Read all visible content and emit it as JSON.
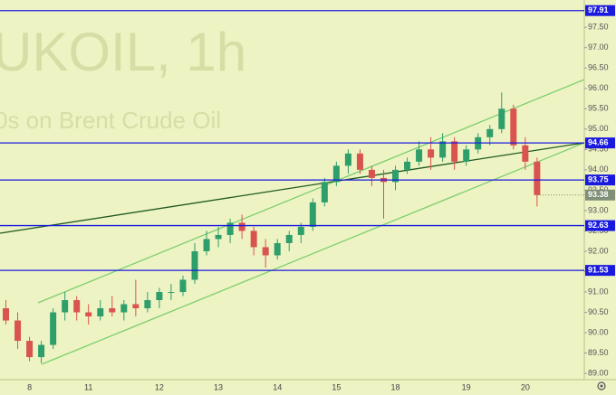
{
  "chart_data": {
    "type": "candlestick",
    "title": "UKOIL, 1h",
    "subtitle": "0s on Brent Crude Oil",
    "categories": [
      null,
      null,
      "8",
      null,
      null,
      null,
      null,
      "11",
      null,
      null,
      null,
      null,
      null,
      "12",
      null,
      null,
      null,
      null,
      "13",
      null,
      null,
      null,
      null,
      "14",
      null,
      null,
      null,
      null,
      "15",
      null,
      null,
      null,
      null,
      "18",
      null,
      null,
      null,
      null,
      null,
      "19",
      null,
      null,
      null,
      null,
      "20",
      null
    ],
    "series": {
      "open": [
        90.6,
        90.3,
        89.8,
        89.4,
        89.7,
        90.5,
        90.8,
        90.5,
        90.4,
        90.6,
        90.5,
        90.7,
        90.6,
        90.8,
        91.0,
        91.0,
        91.3,
        92.0,
        92.3,
        92.4,
        92.7,
        92.5,
        92.1,
        91.9,
        92.2,
        92.4,
        92.6,
        93.2,
        93.7,
        94.1,
        94.4,
        94.0,
        93.8,
        93.7,
        94.0,
        94.2,
        94.5,
        94.3,
        94.7,
        94.2,
        94.5,
        94.8,
        95.0,
        95.5,
        94.6,
        94.2
      ],
      "high": [
        90.8,
        90.5,
        89.9,
        89.8,
        90.6,
        91.0,
        90.9,
        90.7,
        90.8,
        90.9,
        90.8,
        91.3,
        91.0,
        91.1,
        91.2,
        91.4,
        92.2,
        92.5,
        92.6,
        92.8,
        92.9,
        92.6,
        92.3,
        92.3,
        92.5,
        92.7,
        93.3,
        93.8,
        94.2,
        94.5,
        94.5,
        94.1,
        94.0,
        94.1,
        94.3,
        94.7,
        94.8,
        94.9,
        94.8,
        94.6,
        94.9,
        95.1,
        95.9,
        95.6,
        94.8,
        94.3
      ],
      "low": [
        90.2,
        89.6,
        89.3,
        89.25,
        89.6,
        90.3,
        90.3,
        90.2,
        90.3,
        90.4,
        90.3,
        90.4,
        90.5,
        90.6,
        90.8,
        90.9,
        91.2,
        91.9,
        92.1,
        92.2,
        92.3,
        91.9,
        91.6,
        91.8,
        92.0,
        92.2,
        92.5,
        93.1,
        93.6,
        93.9,
        93.9,
        93.6,
        92.8,
        93.5,
        93.9,
        94.1,
        94.0,
        94.2,
        94.0,
        94.1,
        94.4,
        94.6,
        94.9,
        94.5,
        94.0,
        93.1
      ],
      "close": [
        90.3,
        89.8,
        89.4,
        89.7,
        90.5,
        90.8,
        90.5,
        90.4,
        90.6,
        90.5,
        90.7,
        90.6,
        90.8,
        91.0,
        91.0,
        91.3,
        92.0,
        92.3,
        92.4,
        92.7,
        92.5,
        92.1,
        91.9,
        92.2,
        92.4,
        92.6,
        93.2,
        93.7,
        94.1,
        94.4,
        94.0,
        93.8,
        93.7,
        94.0,
        94.2,
        94.5,
        94.3,
        94.7,
        94.2,
        94.5,
        94.8,
        95.0,
        95.5,
        94.6,
        94.2,
        93.38
      ]
    },
    "up_color": "#2e9e6a",
    "down_color": "#d9534f",
    "level_color": "#1a1adf",
    "levels": [
      97.91,
      94.66,
      93.75,
      92.63,
      91.53
    ],
    "ylim": [
      88.47,
      98.17
    ],
    "yticks": [
      {
        "value": 89.0,
        "label": "89.00"
      },
      {
        "value": 89.5,
        "label": "89.50"
      },
      {
        "value": 90.0,
        "label": "90.00"
      },
      {
        "value": 90.5,
        "label": "90.50"
      },
      {
        "value": 91.0,
        "label": "91.00"
      },
      {
        "value": 91.5,
        "label": "91.50"
      },
      {
        "value": 92.0,
        "label": "92.00"
      },
      {
        "value": 92.5,
        "label": "92.50"
      },
      {
        "value": 93.0,
        "label": "93.00"
      },
      {
        "value": 93.5,
        "label": "93.50"
      },
      {
        "value": 94.0,
        "label": "94.00"
      },
      {
        "value": 94.5,
        "label": "94.50"
      },
      {
        "value": 95.0,
        "label": "95.00"
      },
      {
        "value": 95.5,
        "label": "95.50"
      },
      {
        "value": 96.0,
        "label": "96.00"
      },
      {
        "value": 96.5,
        "label": "96.50"
      },
      {
        "value": 97.0,
        "label": "97.00"
      },
      {
        "value": 97.5,
        "label": "97.50"
      }
    ]
  }
}
